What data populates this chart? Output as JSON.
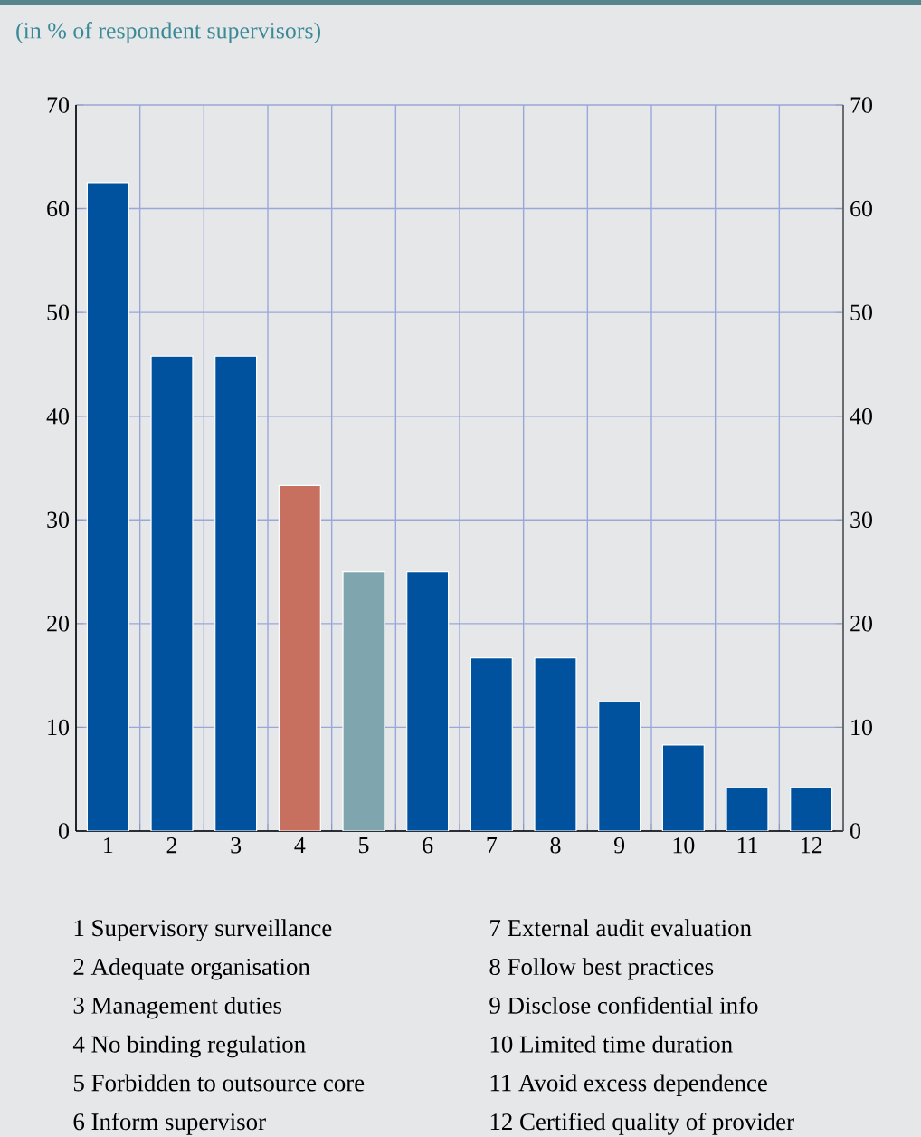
{
  "chart_data": {
    "type": "bar",
    "title": "(in % of respondent supervisors)",
    "categories": [
      "1",
      "2",
      "3",
      "4",
      "5",
      "6",
      "7",
      "8",
      "9",
      "10",
      "11",
      "12"
    ],
    "values": [
      62.5,
      45.8,
      45.8,
      33.3,
      25,
      25,
      16.7,
      16.7,
      12.5,
      8.3,
      4.2,
      4.2
    ],
    "colors": [
      "#00529f",
      "#00529f",
      "#00529f",
      "#c8705f",
      "#7fa6ae",
      "#00529f",
      "#00529f",
      "#00529f",
      "#00529f",
      "#00529f",
      "#00529f",
      "#00529f"
    ],
    "ylim": [
      0,
      70
    ],
    "yticks": [
      0,
      10,
      20,
      30,
      40,
      50,
      60,
      70
    ],
    "y2lim": [
      0,
      70
    ],
    "y2ticks": [
      0,
      10,
      20,
      30,
      40,
      50,
      60,
      70
    ],
    "grid": true,
    "annotations": [
      "1  Supervisory surveillance",
      "2  Adequate organisation",
      "3  Management duties",
      "4  No binding regulation",
      "5  Forbidden to outsource core",
      "6  Inform supervisor",
      "7  External audit evaluation",
      "8  Follow best practices",
      "9  Disclose confidential info",
      "10 Limited time duration",
      "11 Avoid excess dependence",
      "12 Certified quality of provider"
    ]
  }
}
